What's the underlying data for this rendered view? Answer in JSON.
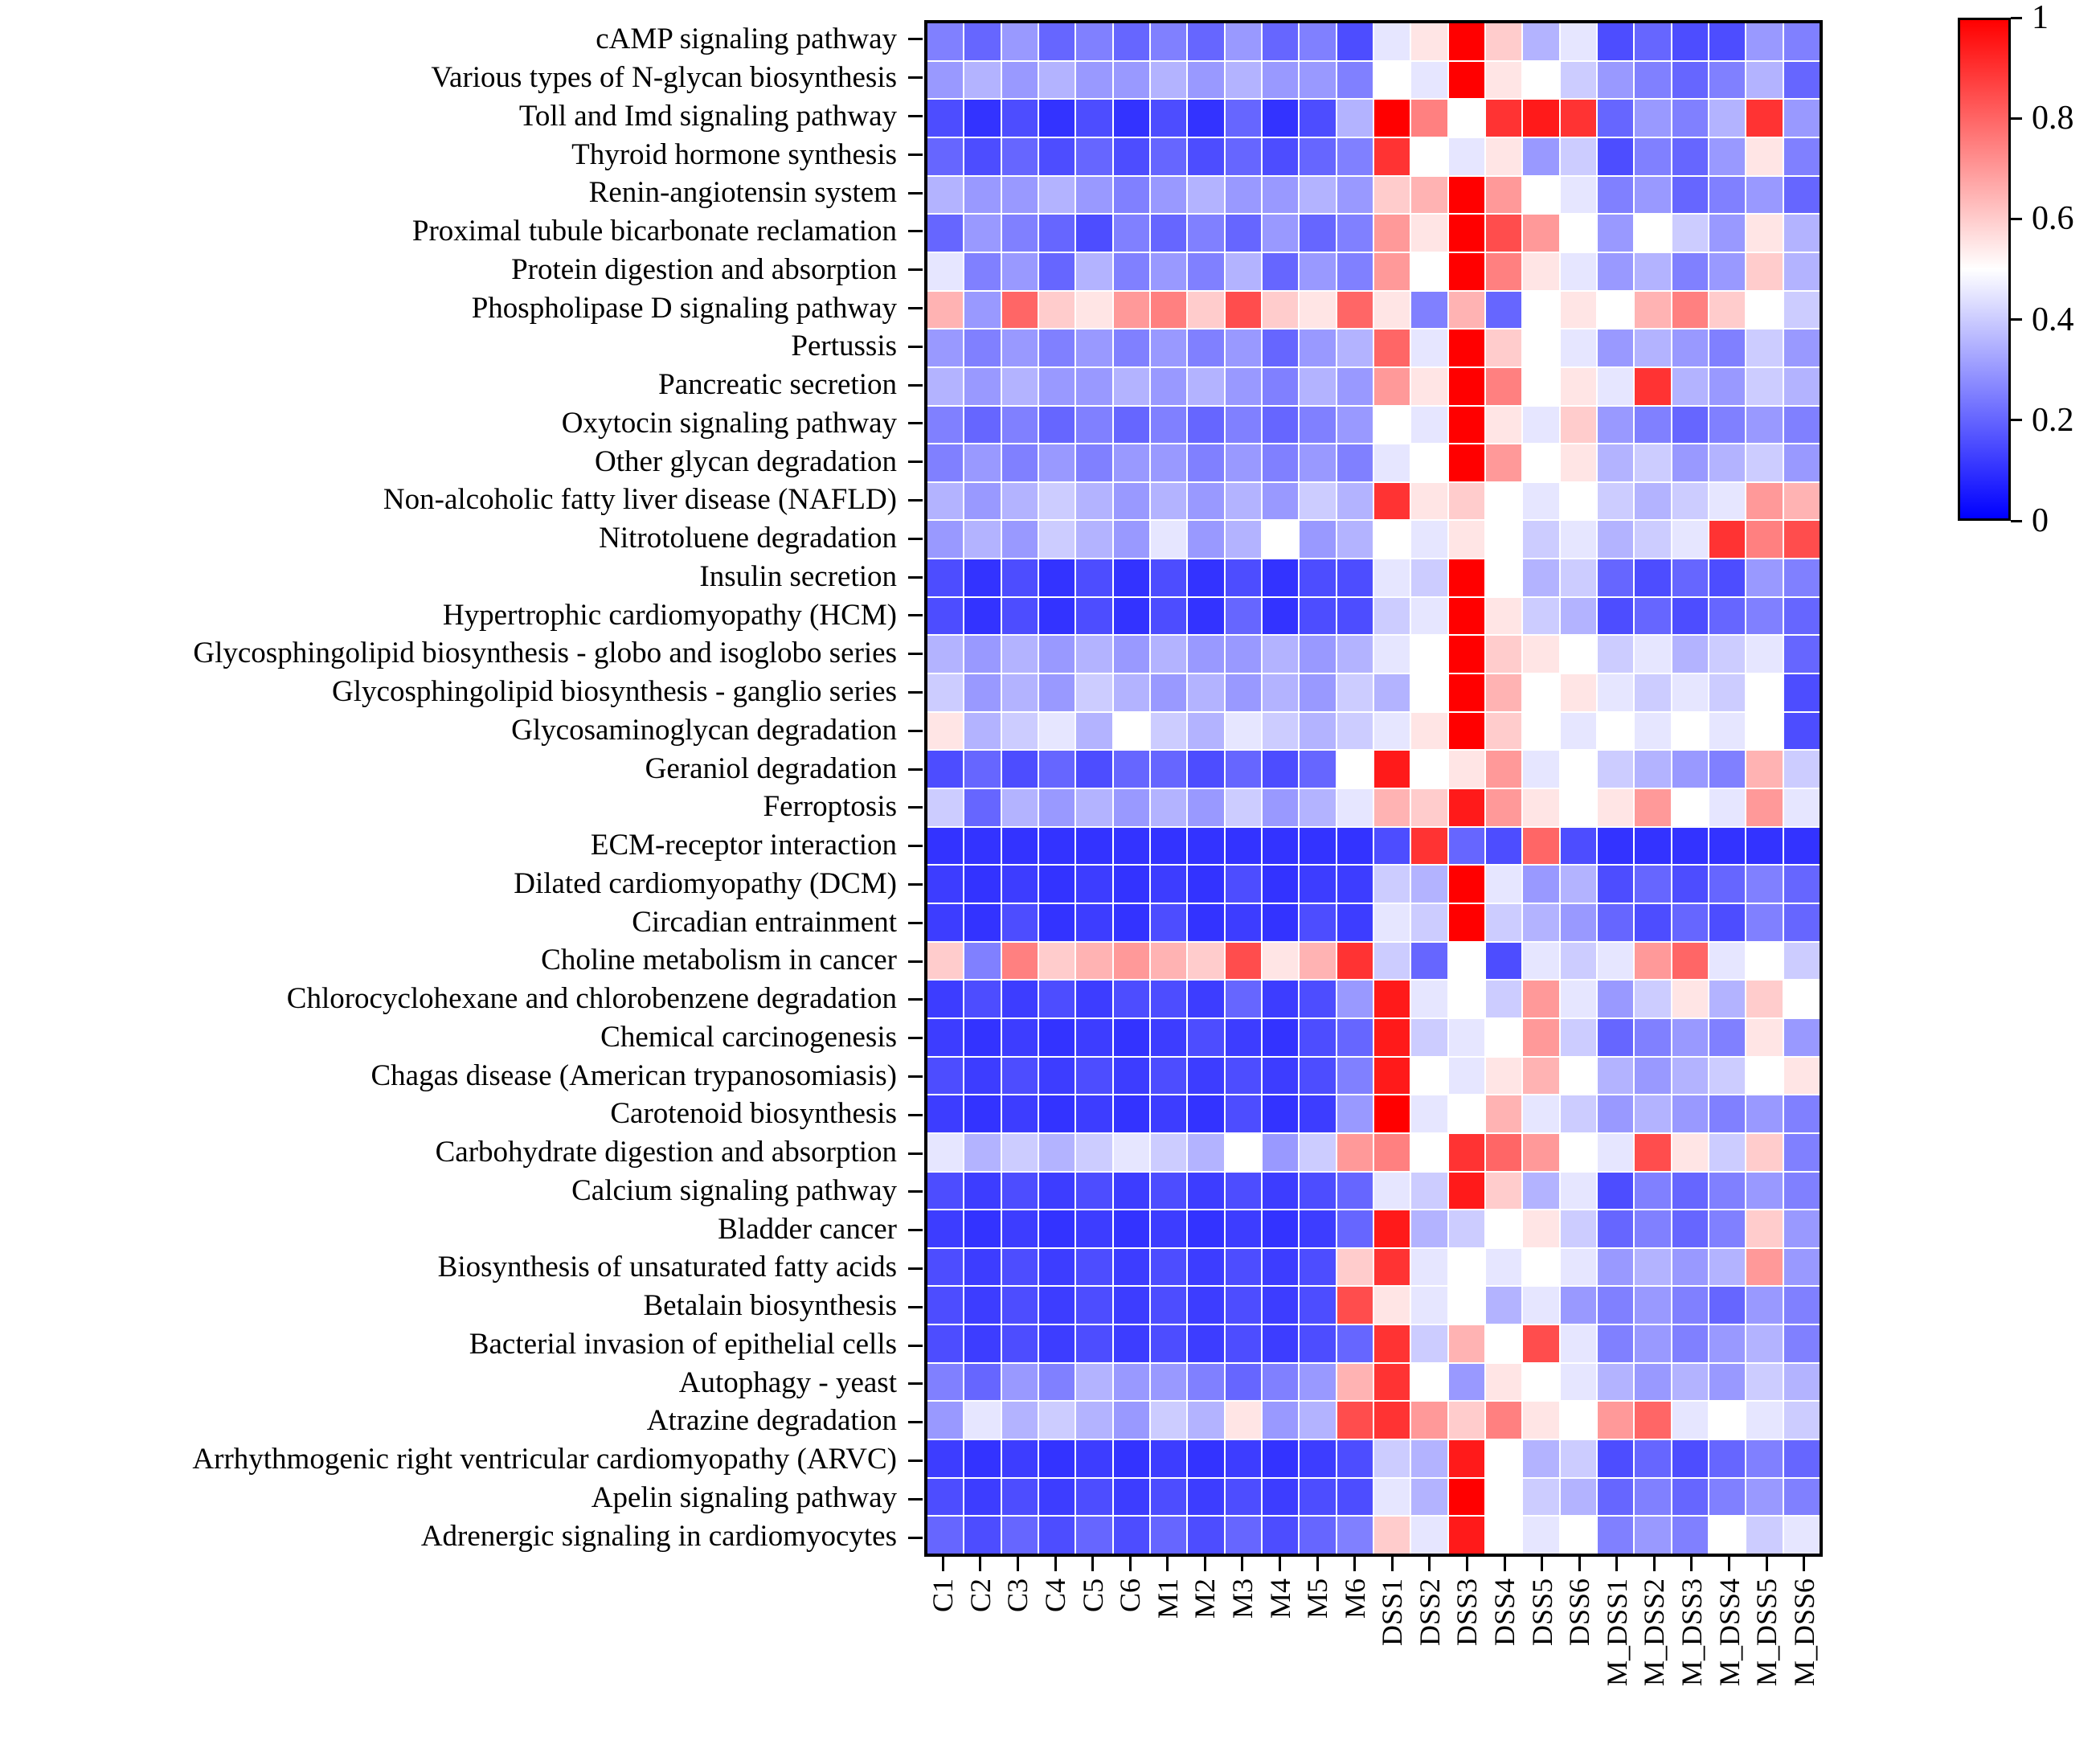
{
  "figure": {
    "background": "#FFFFFF"
  },
  "colorbar": {
    "tick_labels": [
      "1",
      "0.8",
      "0.6",
      "0.4",
      "0.2",
      "0"
    ],
    "color_high": "#FF0000",
    "color_mid": "#FFFFFF",
    "color_low": "#0000FF"
  },
  "chart_data": {
    "type": "heatmap",
    "title": "",
    "xlabel": "",
    "ylabel": "",
    "value_range": [
      0,
      1
    ],
    "colormap": "blue-white-red",
    "legend_position": "right",
    "grid": true,
    "x_labels": [
      "C1",
      "C2",
      "C3",
      "C4",
      "C5",
      "C6",
      "M1",
      "M2",
      "M3",
      "M4",
      "M5",
      "M6",
      "DSS1",
      "DSS2",
      "DSS3",
      "DSS4",
      "DSS5",
      "DSS6",
      "M_DSS1",
      "M_DSS2",
      "M_DSS3",
      "M_DSS4",
      "M_DSS5",
      "M_DSS6"
    ],
    "y_labels": [
      "cAMP signaling pathway",
      "Various types of N-glycan biosynthesis",
      "Toll and Imd signaling pathway",
      "Thyroid hormone synthesis",
      "Renin-angiotensin system",
      "Proximal tubule bicarbonate reclamation",
      "Protein digestion and absorption",
      "Phospholipase D signaling pathway",
      "Pertussis",
      "Pancreatic secretion",
      "Oxytocin signaling pathway",
      "Other glycan degradation",
      "Non-alcoholic fatty liver disease (NAFLD)",
      "Nitrotoluene degradation",
      "Insulin secretion",
      "Hypertrophic cardiomyopathy (HCM)",
      "Glycosphingolipid biosynthesis - globo and isoglobo series",
      "Glycosphingolipid biosynthesis - ganglio series",
      "Glycosaminoglycan degradation",
      "Geraniol degradation",
      "Ferroptosis",
      "ECM-receptor interaction",
      "Dilated cardiomyopathy (DCM)",
      "Circadian entrainment",
      "Choline metabolism in cancer",
      "Chlorocyclohexane and chlorobenzene degradation",
      "Chemical carcinogenesis",
      "Chagas disease (American trypanosomiasis)",
      "Carotenoid biosynthesis",
      "Carbohydrate digestion and absorption",
      "Calcium signaling pathway",
      "Bladder cancer",
      "Biosynthesis of unsaturated fatty acids",
      "Betalain biosynthesis",
      "Bacterial invasion of epithelial cells",
      "Autophagy - yeast",
      "Atrazine degradation",
      "Arrhythmogenic right ventricular cardiomyopathy (ARVC)",
      "Apelin signaling pathway",
      "Adrenergic signaling in cardiomyocytes"
    ],
    "values": [
      [
        0.25,
        0.2,
        0.3,
        0.2,
        0.25,
        0.2,
        0.25,
        0.2,
        0.3,
        0.2,
        0.25,
        0.15,
        0.45,
        0.55,
        1.0,
        0.6,
        0.35,
        0.45,
        0.15,
        0.2,
        0.15,
        0.15,
        0.3,
        0.25
      ],
      [
        0.3,
        0.35,
        0.3,
        0.35,
        0.3,
        0.3,
        0.35,
        0.3,
        0.35,
        0.3,
        0.3,
        0.25,
        0.5,
        0.45,
        1.0,
        0.55,
        0.5,
        0.4,
        0.3,
        0.25,
        0.2,
        0.25,
        0.35,
        0.2
      ],
      [
        0.15,
        0.1,
        0.15,
        0.1,
        0.15,
        0.1,
        0.15,
        0.1,
        0.2,
        0.1,
        0.15,
        0.35,
        1.0,
        0.75,
        0.5,
        0.9,
        0.95,
        0.9,
        0.2,
        0.3,
        0.25,
        0.35,
        0.9,
        0.3
      ],
      [
        0.2,
        0.15,
        0.2,
        0.15,
        0.2,
        0.15,
        0.2,
        0.15,
        0.2,
        0.15,
        0.2,
        0.25,
        0.9,
        0.5,
        0.45,
        0.55,
        0.3,
        0.4,
        0.15,
        0.25,
        0.2,
        0.3,
        0.55,
        0.25
      ],
      [
        0.35,
        0.3,
        0.3,
        0.35,
        0.3,
        0.25,
        0.3,
        0.35,
        0.3,
        0.3,
        0.35,
        0.3,
        0.6,
        0.65,
        1.0,
        0.7,
        0.5,
        0.45,
        0.25,
        0.3,
        0.2,
        0.25,
        0.3,
        0.2
      ],
      [
        0.2,
        0.3,
        0.25,
        0.2,
        0.15,
        0.25,
        0.2,
        0.25,
        0.2,
        0.3,
        0.2,
        0.25,
        0.7,
        0.55,
        1.0,
        0.85,
        0.7,
        0.5,
        0.3,
        0.5,
        0.4,
        0.3,
        0.55,
        0.35
      ],
      [
        0.45,
        0.25,
        0.3,
        0.2,
        0.35,
        0.25,
        0.3,
        0.25,
        0.35,
        0.2,
        0.3,
        0.25,
        0.7,
        0.5,
        1.0,
        0.75,
        0.55,
        0.45,
        0.3,
        0.35,
        0.25,
        0.3,
        0.6,
        0.35
      ],
      [
        0.65,
        0.3,
        0.8,
        0.6,
        0.55,
        0.7,
        0.75,
        0.6,
        0.85,
        0.6,
        0.55,
        0.8,
        0.55,
        0.25,
        0.65,
        0.2,
        0.5,
        0.55,
        0.5,
        0.65,
        0.75,
        0.6,
        0.5,
        0.4
      ],
      [
        0.3,
        0.25,
        0.3,
        0.25,
        0.3,
        0.25,
        0.3,
        0.25,
        0.3,
        0.2,
        0.3,
        0.35,
        0.8,
        0.45,
        1.0,
        0.6,
        0.5,
        0.45,
        0.3,
        0.35,
        0.3,
        0.25,
        0.4,
        0.3
      ],
      [
        0.35,
        0.3,
        0.35,
        0.3,
        0.3,
        0.35,
        0.3,
        0.35,
        0.3,
        0.25,
        0.35,
        0.3,
        0.7,
        0.55,
        1.0,
        0.75,
        0.5,
        0.55,
        0.45,
        0.9,
        0.35,
        0.3,
        0.4,
        0.35
      ],
      [
        0.25,
        0.2,
        0.25,
        0.2,
        0.25,
        0.2,
        0.25,
        0.2,
        0.25,
        0.2,
        0.25,
        0.3,
        0.5,
        0.45,
        1.0,
        0.55,
        0.45,
        0.6,
        0.3,
        0.25,
        0.2,
        0.25,
        0.3,
        0.25
      ],
      [
        0.25,
        0.3,
        0.25,
        0.3,
        0.25,
        0.3,
        0.3,
        0.25,
        0.3,
        0.25,
        0.3,
        0.25,
        0.45,
        0.5,
        1.0,
        0.7,
        0.5,
        0.55,
        0.35,
        0.4,
        0.3,
        0.35,
        0.4,
        0.3
      ],
      [
        0.35,
        0.3,
        0.35,
        0.4,
        0.35,
        0.3,
        0.35,
        0.3,
        0.35,
        0.3,
        0.4,
        0.35,
        0.9,
        0.55,
        0.6,
        0.5,
        0.45,
        0.5,
        0.4,
        0.35,
        0.4,
        0.45,
        0.7,
        0.65
      ],
      [
        0.3,
        0.35,
        0.3,
        0.4,
        0.35,
        0.3,
        0.45,
        0.3,
        0.35,
        0.5,
        0.3,
        0.35,
        0.5,
        0.45,
        0.55,
        0.5,
        0.4,
        0.45,
        0.35,
        0.4,
        0.45,
        0.9,
        0.75,
        0.85
      ],
      [
        0.15,
        0.1,
        0.15,
        0.1,
        0.15,
        0.1,
        0.15,
        0.1,
        0.15,
        0.1,
        0.15,
        0.15,
        0.45,
        0.4,
        1.0,
        0.5,
        0.35,
        0.4,
        0.2,
        0.15,
        0.2,
        0.15,
        0.3,
        0.25
      ],
      [
        0.15,
        0.1,
        0.15,
        0.1,
        0.15,
        0.1,
        0.15,
        0.1,
        0.2,
        0.1,
        0.15,
        0.15,
        0.4,
        0.45,
        1.0,
        0.55,
        0.4,
        0.35,
        0.15,
        0.2,
        0.15,
        0.2,
        0.25,
        0.2
      ],
      [
        0.35,
        0.3,
        0.35,
        0.3,
        0.35,
        0.3,
        0.35,
        0.3,
        0.3,
        0.35,
        0.3,
        0.35,
        0.45,
        0.5,
        1.0,
        0.6,
        0.55,
        0.5,
        0.4,
        0.45,
        0.35,
        0.4,
        0.45,
        0.2
      ],
      [
        0.4,
        0.3,
        0.35,
        0.3,
        0.4,
        0.35,
        0.3,
        0.35,
        0.3,
        0.35,
        0.3,
        0.4,
        0.35,
        0.5,
        1.0,
        0.65,
        0.5,
        0.55,
        0.45,
        0.4,
        0.45,
        0.4,
        0.5,
        0.15
      ],
      [
        0.55,
        0.35,
        0.4,
        0.45,
        0.35,
        0.5,
        0.4,
        0.35,
        0.45,
        0.4,
        0.35,
        0.4,
        0.45,
        0.55,
        1.0,
        0.6,
        0.5,
        0.45,
        0.5,
        0.45,
        0.5,
        0.45,
        0.5,
        0.15
      ],
      [
        0.15,
        0.2,
        0.15,
        0.2,
        0.15,
        0.2,
        0.2,
        0.15,
        0.2,
        0.15,
        0.2,
        0.5,
        0.95,
        0.5,
        0.55,
        0.7,
        0.45,
        0.5,
        0.4,
        0.35,
        0.3,
        0.25,
        0.65,
        0.4
      ],
      [
        0.4,
        0.2,
        0.35,
        0.3,
        0.35,
        0.3,
        0.35,
        0.3,
        0.4,
        0.3,
        0.35,
        0.45,
        0.65,
        0.6,
        0.95,
        0.7,
        0.55,
        0.5,
        0.55,
        0.7,
        0.5,
        0.45,
        0.7,
        0.45
      ],
      [
        0.1,
        0.1,
        0.1,
        0.1,
        0.1,
        0.1,
        0.1,
        0.1,
        0.1,
        0.1,
        0.1,
        0.1,
        0.15,
        0.9,
        0.2,
        0.15,
        0.8,
        0.15,
        0.1,
        0.1,
        0.1,
        0.1,
        0.1,
        0.1
      ],
      [
        0.12,
        0.1,
        0.12,
        0.1,
        0.12,
        0.1,
        0.12,
        0.1,
        0.15,
        0.1,
        0.12,
        0.12,
        0.4,
        0.35,
        1.0,
        0.45,
        0.3,
        0.35,
        0.15,
        0.2,
        0.15,
        0.2,
        0.25,
        0.2
      ],
      [
        0.12,
        0.1,
        0.15,
        0.1,
        0.12,
        0.1,
        0.15,
        0.1,
        0.12,
        0.1,
        0.15,
        0.12,
        0.45,
        0.4,
        1.0,
        0.4,
        0.35,
        0.3,
        0.2,
        0.15,
        0.2,
        0.15,
        0.25,
        0.2
      ],
      [
        0.6,
        0.25,
        0.75,
        0.6,
        0.65,
        0.7,
        0.65,
        0.6,
        0.85,
        0.55,
        0.65,
        0.9,
        0.4,
        0.2,
        0.5,
        0.15,
        0.45,
        0.4,
        0.45,
        0.7,
        0.8,
        0.45,
        0.5,
        0.4
      ],
      [
        0.12,
        0.15,
        0.12,
        0.15,
        0.12,
        0.15,
        0.15,
        0.12,
        0.2,
        0.12,
        0.15,
        0.3,
        0.95,
        0.45,
        0.5,
        0.4,
        0.7,
        0.45,
        0.3,
        0.4,
        0.55,
        0.35,
        0.6,
        0.5
      ],
      [
        0.12,
        0.1,
        0.12,
        0.1,
        0.12,
        0.1,
        0.12,
        0.15,
        0.12,
        0.1,
        0.15,
        0.2,
        0.95,
        0.4,
        0.45,
        0.5,
        0.7,
        0.4,
        0.2,
        0.25,
        0.3,
        0.25,
        0.55,
        0.3
      ],
      [
        0.15,
        0.12,
        0.15,
        0.12,
        0.15,
        0.12,
        0.15,
        0.12,
        0.15,
        0.12,
        0.15,
        0.25,
        0.95,
        0.5,
        0.45,
        0.55,
        0.65,
        0.5,
        0.35,
        0.3,
        0.35,
        0.4,
        0.5,
        0.55
      ],
      [
        0.12,
        0.1,
        0.12,
        0.1,
        0.12,
        0.1,
        0.12,
        0.1,
        0.15,
        0.1,
        0.12,
        0.3,
        1.0,
        0.45,
        0.5,
        0.65,
        0.45,
        0.4,
        0.3,
        0.35,
        0.3,
        0.25,
        0.3,
        0.25
      ],
      [
        0.45,
        0.35,
        0.4,
        0.35,
        0.4,
        0.45,
        0.4,
        0.35,
        0.5,
        0.3,
        0.4,
        0.7,
        0.75,
        0.5,
        0.9,
        0.8,
        0.7,
        0.5,
        0.45,
        0.85,
        0.55,
        0.4,
        0.6,
        0.25
      ],
      [
        0.15,
        0.12,
        0.15,
        0.12,
        0.15,
        0.12,
        0.15,
        0.12,
        0.15,
        0.12,
        0.15,
        0.2,
        0.45,
        0.4,
        0.95,
        0.6,
        0.35,
        0.45,
        0.15,
        0.25,
        0.2,
        0.25,
        0.3,
        0.25
      ],
      [
        0.12,
        0.1,
        0.12,
        0.1,
        0.12,
        0.1,
        0.12,
        0.1,
        0.12,
        0.1,
        0.12,
        0.2,
        0.95,
        0.35,
        0.4,
        0.5,
        0.55,
        0.4,
        0.2,
        0.25,
        0.2,
        0.25,
        0.6,
        0.3
      ],
      [
        0.15,
        0.12,
        0.15,
        0.12,
        0.15,
        0.12,
        0.15,
        0.12,
        0.15,
        0.12,
        0.15,
        0.6,
        0.9,
        0.45,
        0.5,
        0.45,
        0.5,
        0.45,
        0.3,
        0.35,
        0.3,
        0.35,
        0.7,
        0.3
      ],
      [
        0.15,
        0.12,
        0.15,
        0.12,
        0.15,
        0.12,
        0.15,
        0.12,
        0.15,
        0.12,
        0.15,
        0.85,
        0.55,
        0.45,
        0.5,
        0.35,
        0.45,
        0.3,
        0.25,
        0.3,
        0.25,
        0.2,
        0.3,
        0.25
      ],
      [
        0.15,
        0.12,
        0.15,
        0.12,
        0.15,
        0.12,
        0.15,
        0.12,
        0.15,
        0.12,
        0.15,
        0.2,
        0.9,
        0.4,
        0.65,
        0.5,
        0.85,
        0.45,
        0.25,
        0.3,
        0.25,
        0.3,
        0.35,
        0.25
      ],
      [
        0.25,
        0.2,
        0.3,
        0.25,
        0.35,
        0.3,
        0.3,
        0.25,
        0.2,
        0.25,
        0.3,
        0.65,
        0.9,
        0.5,
        0.3,
        0.55,
        0.5,
        0.45,
        0.35,
        0.3,
        0.35,
        0.3,
        0.4,
        0.35
      ],
      [
        0.3,
        0.45,
        0.35,
        0.4,
        0.35,
        0.3,
        0.4,
        0.35,
        0.55,
        0.3,
        0.35,
        0.85,
        0.9,
        0.7,
        0.6,
        0.75,
        0.55,
        0.5,
        0.7,
        0.8,
        0.45,
        0.5,
        0.45,
        0.4
      ],
      [
        0.12,
        0.1,
        0.12,
        0.1,
        0.12,
        0.1,
        0.12,
        0.1,
        0.12,
        0.1,
        0.12,
        0.15,
        0.4,
        0.35,
        0.95,
        0.5,
        0.35,
        0.4,
        0.15,
        0.2,
        0.15,
        0.2,
        0.25,
        0.2
      ],
      [
        0.15,
        0.12,
        0.15,
        0.12,
        0.15,
        0.12,
        0.15,
        0.12,
        0.15,
        0.12,
        0.15,
        0.15,
        0.45,
        0.35,
        1.0,
        0.5,
        0.4,
        0.35,
        0.2,
        0.25,
        0.2,
        0.25,
        0.3,
        0.25
      ],
      [
        0.2,
        0.15,
        0.2,
        0.15,
        0.2,
        0.15,
        0.2,
        0.15,
        0.2,
        0.15,
        0.2,
        0.25,
        0.6,
        0.45,
        0.95,
        0.5,
        0.45,
        0.5,
        0.25,
        0.3,
        0.25,
        0.5,
        0.4,
        0.45
      ]
    ]
  }
}
